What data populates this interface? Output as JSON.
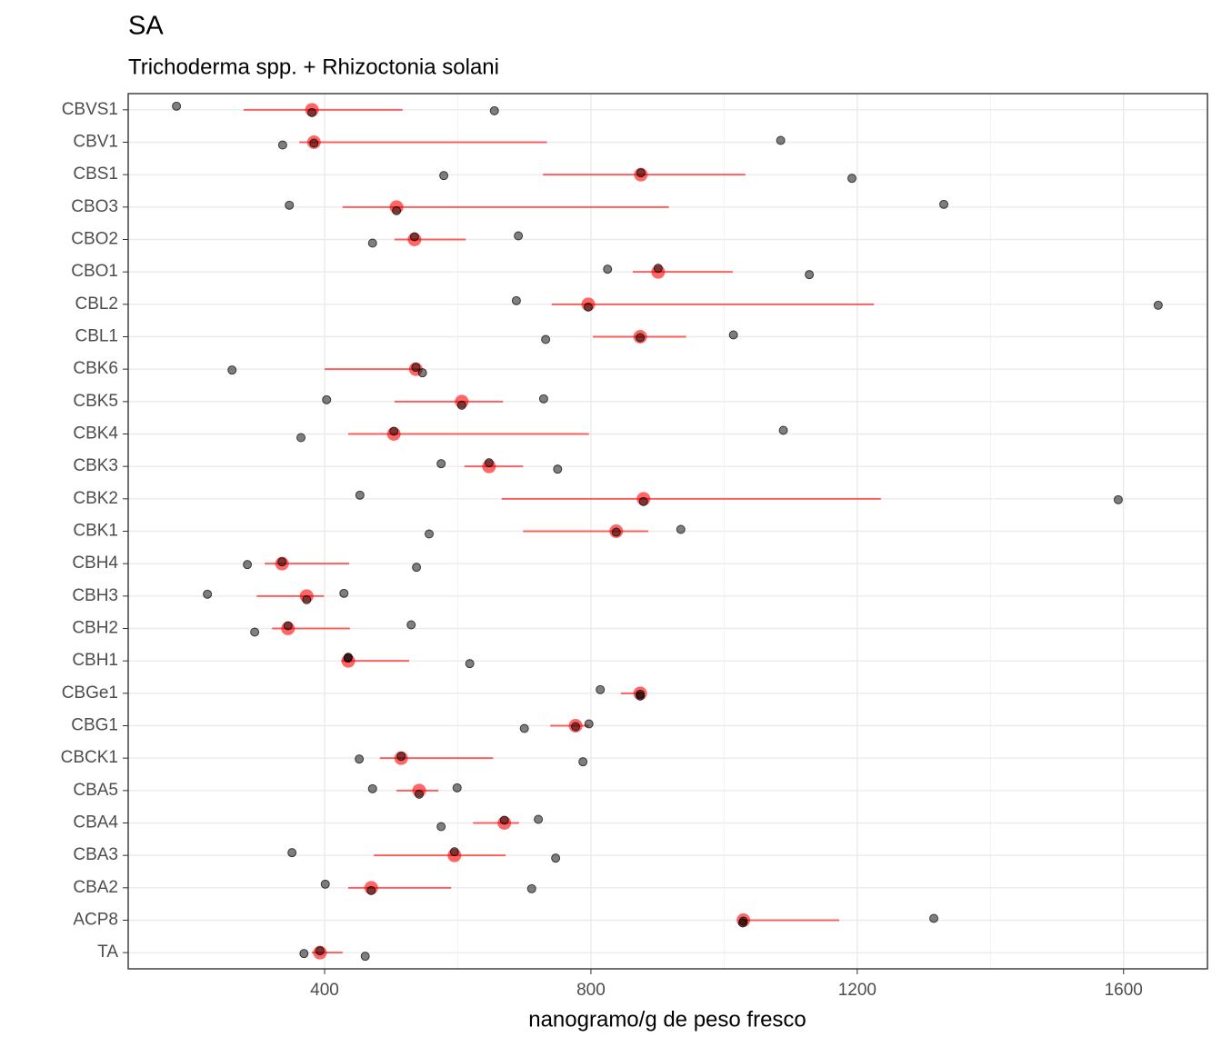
{
  "chart_data": {
    "type": "dot-interval",
    "title": "SA",
    "subtitle": "Trichoderma spp. + Rhizoctonia solani",
    "x_label": "nanogramo/g de peso fresco",
    "categories": [
      "CBVS1",
      "CBV1",
      "CBS1",
      "CBO3",
      "CBO2",
      "CBO1",
      "CBL2",
      "CBL1",
      "CBK6",
      "CBK5",
      "CBK4",
      "CBK3",
      "CBK2",
      "CBK1",
      "CBH4",
      "CBH3",
      "CBH2",
      "CBH1",
      "CBGe1",
      "CBG1",
      "CBCK1",
      "CBA5",
      "CBA4",
      "CBA3",
      "CBA2",
      "ACP8",
      "TA"
    ],
    "observations": {
      "color": "#000000",
      "values": [
        [
          177.5,
          381,
          655
        ],
        [
          337,
          384,
          1085
        ],
        [
          579,
          875,
          1192
        ],
        [
          347,
          508,
          1330
        ],
        [
          472,
          535,
          691
        ],
        [
          825,
          901,
          1128
        ],
        [
          688,
          796,
          1652
        ],
        [
          732,
          874,
          1014
        ],
        [
          261,
          537,
          547
        ],
        [
          403,
          606,
          729
        ],
        [
          364.5,
          504,
          1089
        ],
        [
          575,
          647,
          750
        ],
        [
          453,
          879,
          1592
        ],
        [
          557,
          838,
          935
        ],
        [
          284,
          336,
          538
        ],
        [
          224,
          373,
          429
        ],
        [
          295,
          345,
          530
        ],
        [
          435,
          435.5,
          618
        ],
        [
          814,
          874,
          874
        ],
        [
          700,
          777,
          797
        ],
        [
          452,
          515,
          788
        ],
        [
          472,
          542,
          599
        ],
        [
          575,
          670,
          721
        ],
        [
          351,
          595,
          747
        ],
        [
          401,
          470,
          711
        ],
        [
          1028,
          1029,
          1315
        ],
        [
          369,
          393,
          461
        ]
      ]
    },
    "summary": {
      "color": "#ff0000",
      "values": [
        381,
        384,
        875,
        508,
        535,
        901,
        796,
        874,
        537,
        606,
        504,
        647,
        879,
        838,
        336,
        373,
        345,
        435.5,
        874,
        777,
        515,
        542,
        670,
        595,
        470,
        1029,
        393
      ],
      "low": [
        278.5,
        362,
        728,
        427,
        505,
        863,
        741,
        803,
        400,
        505,
        435.5,
        610,
        666,
        698,
        310,
        298,
        321,
        425,
        845,
        739,
        483,
        508,
        623,
        474,
        435.5,
        1028,
        381
      ],
      "high": [
        517,
        734,
        1032,
        917,
        612,
        1013,
        1225,
        943,
        545,
        668,
        797,
        698,
        1235.5,
        886,
        437,
        399,
        438,
        527,
        874,
        797,
        653,
        571,
        692,
        672,
        590,
        1173,
        427
      ]
    },
    "xlim": [
      105,
      1726
    ],
    "xticks": [
      400,
      800,
      1200,
      1600
    ],
    "grid": true
  }
}
